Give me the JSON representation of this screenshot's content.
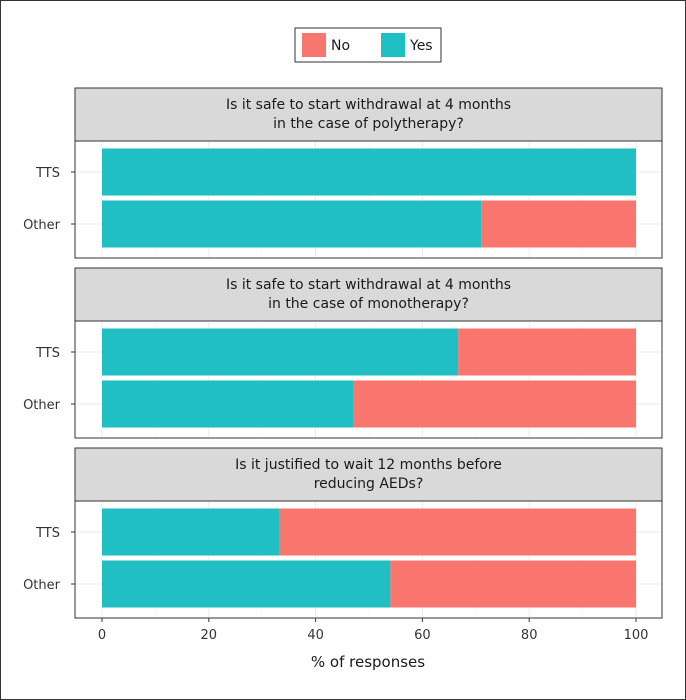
{
  "chart_data": {
    "type": "bar",
    "orientation": "horizontal",
    "stacked": true,
    "legend": {
      "position": "top-center",
      "entries": [
        {
          "name": "No",
          "color": "#F8766D"
        },
        {
          "name": "Yes",
          "color": "#1FBFC3"
        }
      ]
    },
    "xlabel": "% of responses",
    "xlim": [
      0,
      100
    ],
    "xticks": [
      0,
      20,
      40,
      60,
      80,
      100
    ],
    "grid": true,
    "categories": [
      "TTS",
      "Other"
    ],
    "panels": [
      {
        "title_lines": [
          "Is it safe to start withdrawal at 4 months",
          "in the case of polytherapy?"
        ],
        "series": [
          {
            "name": "Yes",
            "values": [
              100,
              71
            ]
          },
          {
            "name": "No",
            "values": [
              0,
              29
            ]
          }
        ]
      },
      {
        "title_lines": [
          "Is it safe to start withdrawal at 4 months",
          "in the case of monotherapy?"
        ],
        "series": [
          {
            "name": "Yes",
            "values": [
              66.7,
              47
            ]
          },
          {
            "name": "No",
            "values": [
              33.3,
              53
            ]
          }
        ]
      },
      {
        "title_lines": [
          "Is it justified to wait 12 months before",
          "reducing AEDs?"
        ],
        "series": [
          {
            "name": "Yes",
            "values": [
              33.3,
              54
            ]
          },
          {
            "name": "No",
            "values": [
              66.7,
              46
            ]
          }
        ]
      }
    ]
  }
}
